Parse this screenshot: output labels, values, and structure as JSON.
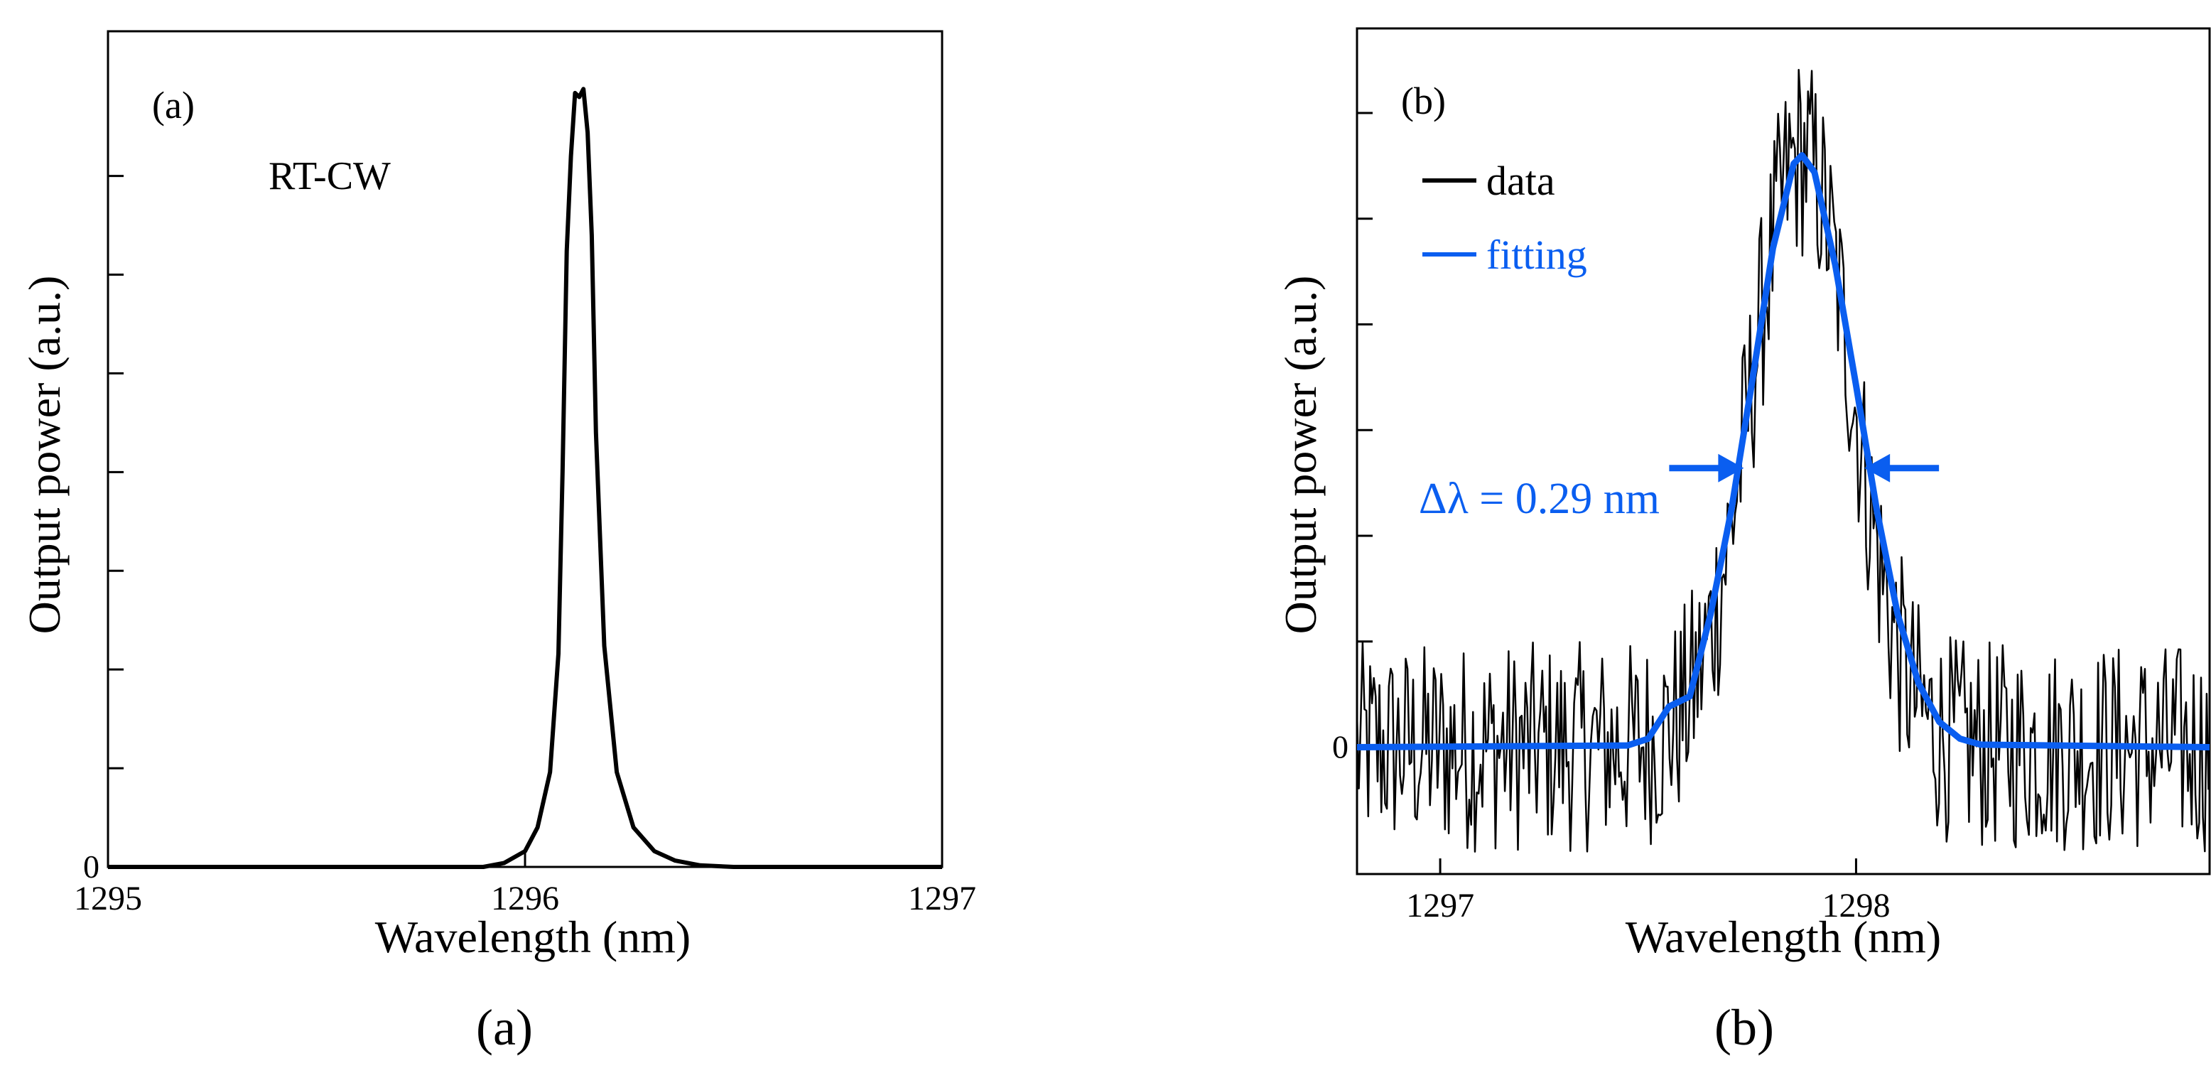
{
  "chart_data": [
    {
      "type": "line",
      "panel_tag": "(a)",
      "caption": "(a)",
      "annotation": "RT-CW",
      "xlabel": "Wavelength (nm)",
      "ylabel": "Output power (a.u.)",
      "xlim": [
        1295,
        1297
      ],
      "ylim": [
        0,
        1
      ],
      "x_ticks": [
        "1295",
        "1296",
        "1297"
      ],
      "x_tick_values": [
        1295,
        1296,
        1297
      ],
      "y_ticks": [
        "0"
      ],
      "y_tick_values": [
        0
      ],
      "y_minor_tick_values": [
        0.125,
        0.25,
        0.375,
        0.5,
        0.625,
        0.75,
        0.875
      ],
      "grid": false,
      "colors": {
        "data": "#000000"
      },
      "series": [
        {
          "x": [
            1295.0,
            1295.5,
            1295.9,
            1295.95,
            1296.0,
            1296.03,
            1296.06,
            1296.08,
            1296.09,
            1296.1,
            1296.11,
            1296.12,
            1296.13,
            1296.14,
            1296.15,
            1296.16,
            1296.17,
            1296.19,
            1296.22,
            1296.26,
            1296.31,
            1296.36,
            1296.42,
            1296.5,
            1297.0
          ],
          "y": [
            0.0,
            0.0,
            0.0,
            0.005,
            0.02,
            0.05,
            0.12,
            0.27,
            0.5,
            0.78,
            0.9,
            0.98,
            0.975,
            0.985,
            0.93,
            0.8,
            0.55,
            0.28,
            0.12,
            0.05,
            0.02,
            0.008,
            0.002,
            0.0,
            0.0
          ]
        }
      ]
    },
    {
      "type": "line",
      "panel_tag": "(b)",
      "caption": "(b)",
      "xlabel": "Wavelength (nm)",
      "ylabel": "Output power (a.u.)",
      "xlim": [
        1296.8,
        1298.85
      ],
      "ylim": [
        -0.15,
        0.85
      ],
      "x_ticks": [
        "1297",
        "1298"
      ],
      "x_tick_values": [
        1297,
        1298
      ],
      "y_ticks": [
        "0"
      ],
      "y_tick_values": [
        0
      ],
      "y_minor_tick_values": [
        0.125,
        0.25,
        0.375,
        0.5,
        0.625,
        0.75
      ],
      "grid": false,
      "legend": {
        "position": "top-left",
        "entries": [
          "data",
          "fitting"
        ]
      },
      "annotation": {
        "text": "Δλ = 0.29 nm",
        "left_x": 1297.73,
        "right_x": 1298.02,
        "y": 0.33
      },
      "colors": {
        "data": "#000000",
        "fitting": "#0a5ef0"
      },
      "series": [
        {
          "name": "data",
          "noise_amplitude": 0.1,
          "center": 1297.87,
          "amplitude": 0.7,
          "sigma": 0.122,
          "x_step": 0.0045
        },
        {
          "name": "fitting",
          "x": [
            1296.8,
            1297.45,
            1297.5,
            1297.55,
            1297.6,
            1297.65,
            1297.7,
            1297.75,
            1297.8,
            1297.85,
            1297.87,
            1297.9,
            1297.95,
            1298.0,
            1298.05,
            1298.1,
            1298.15,
            1298.2,
            1298.25,
            1298.3,
            1298.85
          ],
          "y": [
            0.0,
            0.002,
            0.01,
            0.048,
            0.06,
            0.157,
            0.28,
            0.432,
            0.59,
            0.69,
            0.7,
            0.68,
            0.57,
            0.428,
            0.28,
            0.157,
            0.076,
            0.03,
            0.01,
            0.003,
            0.0
          ]
        }
      ]
    }
  ]
}
